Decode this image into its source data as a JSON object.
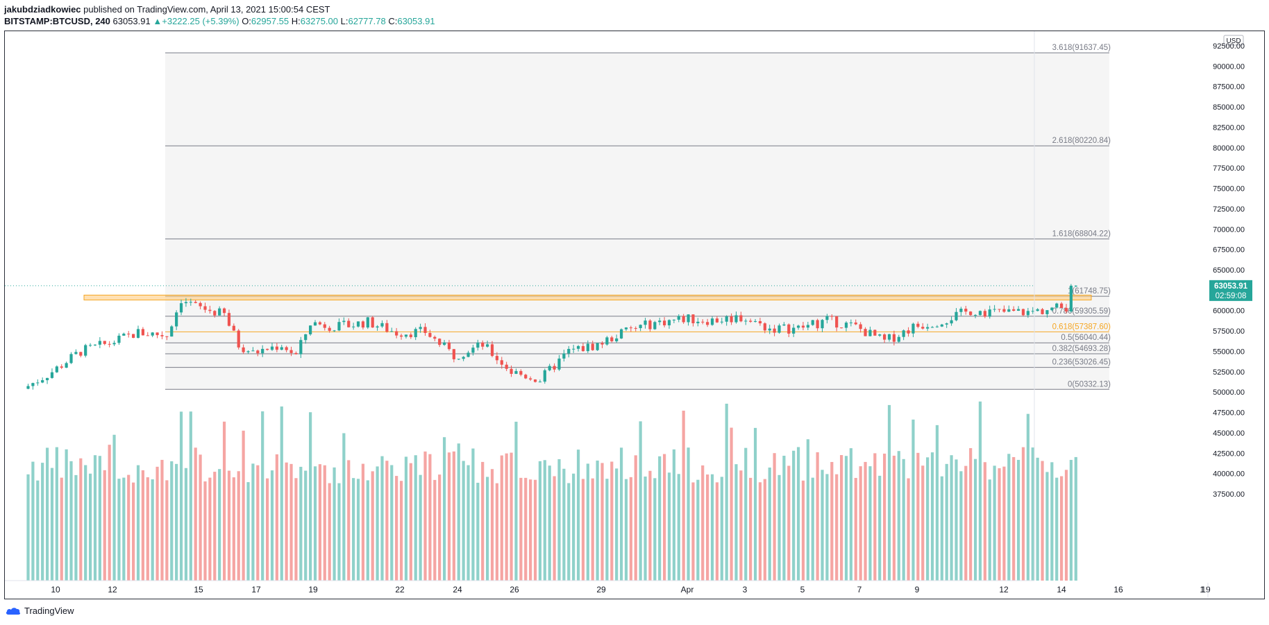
{
  "header": {
    "author": "jakubdziadkowiec",
    "published_text": "published on TradingView.com, April 13, 2021 15:00:54 CEST"
  },
  "legend": {
    "symbol": "BITSTAMP:BTCUSD, 240",
    "price": "63053.91",
    "change_arrow": "▲",
    "change": "+3222.25 (+5.39%)",
    "o_label": "O:",
    "o_value": "62957.55",
    "h_label": "H:",
    "h_value": "63275.00",
    "l_label": "L:",
    "l_value": "62777.78",
    "c_label": "C:",
    "c_value": "63053.91"
  },
  "price_axis": {
    "currency": "USD",
    "ticks": [
      "92500.00",
      "90000.00",
      "87500.00",
      "85000.00",
      "82500.00",
      "80000.00",
      "77500.00",
      "75000.00",
      "72500.00",
      "70000.00",
      "67500.00",
      "65000.00",
      "62500.00",
      "60000.00",
      "57500.00",
      "55000.00",
      "52500.00",
      "50000.00",
      "47500.00",
      "45000.00",
      "42500.00",
      "40000.00",
      "37500.00"
    ],
    "tick_values": [
      92500,
      90000,
      87500,
      85000,
      82500,
      80000,
      77500,
      75000,
      72500,
      70000,
      67500,
      65000,
      62500,
      60000,
      57500,
      55000,
      52500,
      50000,
      47500,
      45000,
      42500,
      40000,
      37500
    ],
    "last_price": "63053.91",
    "countdown": "02:59:08"
  },
  "time_axis": {
    "labels": [
      "10",
      "12",
      "15",
      "17",
      "19",
      "22",
      "24",
      "26",
      "29",
      "Apr",
      "3",
      "5",
      "7",
      "9",
      "12",
      "14",
      "16",
      "19"
    ]
  },
  "colors": {
    "up": "#26a69a",
    "down": "#ef5350",
    "up_volume": "#8fd1ca",
    "down_volume": "#f5a5a3",
    "fib_line": "#787b86",
    "fib_golden": "#f5a623",
    "zone_fill": "#ffcc80",
    "zone_border": "#f5a623"
  },
  "fibonacci": [
    {
      "label": "3.618(91637.45)",
      "price": 91637.45,
      "golden": false
    },
    {
      "label": "2.618(80220.84)",
      "price": 80220.84,
      "golden": false
    },
    {
      "label": "1.618(68804.22)",
      "price": 68804.22,
      "golden": false
    },
    {
      "label": "1(61748.75)",
      "price": 61748.75,
      "golden": false
    },
    {
      "label": "0.786(59305.59)",
      "price": 59305.59,
      "golden": false
    },
    {
      "label": "0.618(57387.60)",
      "price": 57387.6,
      "golden": true
    },
    {
      "label": "0.5(56040.44)",
      "price": 56040.44,
      "golden": false
    },
    {
      "label": "0.382(54693.28)",
      "price": 54693.28,
      "golden": false
    },
    {
      "label": "0.236(53026.45)",
      "price": 53026.45,
      "golden": false
    },
    {
      "label": "0(50332.13)",
      "price": 50332.13,
      "golden": false
    }
  ],
  "resistance_zone": {
    "price_low": 61300,
    "price_high": 61900
  },
  "chart_data": {
    "type": "candlestick",
    "symbol": "BITSTAMP:BTCUSD",
    "interval": "240",
    "ylim": [
      36500,
      94000
    ],
    "close_path": [
      {
        "date": "2021-03-08",
        "close": 50400
      },
      {
        "date": "2021-03-09",
        "close": 52500
      },
      {
        "date": "2021-03-10",
        "close": 55000
      },
      {
        "date": "2021-03-11",
        "close": 56000
      },
      {
        "date": "2021-03-12",
        "close": 57300
      },
      {
        "date": "2021-03-13",
        "close": 57000
      },
      {
        "date": "2021-03-13 12:00",
        "close": 61400
      },
      {
        "date": "2021-03-14",
        "close": 60500
      },
      {
        "date": "2021-03-15",
        "close": 59500
      },
      {
        "date": "2021-03-15 12:00",
        "close": 55800
      },
      {
        "date": "2021-03-16",
        "close": 54800
      },
      {
        "date": "2021-03-17",
        "close": 55800
      },
      {
        "date": "2021-03-17 12:00",
        "close": 54500
      },
      {
        "date": "2021-03-18",
        "close": 58500
      },
      {
        "date": "2021-03-19",
        "close": 58000
      },
      {
        "date": "2021-03-20",
        "close": 58600
      },
      {
        "date": "2021-03-21",
        "close": 57300
      },
      {
        "date": "2021-03-22",
        "close": 57400
      },
      {
        "date": "2021-03-23",
        "close": 54500
      },
      {
        "date": "2021-03-24",
        "close": 55800
      },
      {
        "date": "2021-03-25",
        "close": 52500
      },
      {
        "date": "2021-03-26",
        "close": 51500
      },
      {
        "date": "2021-03-27",
        "close": 55000
      },
      {
        "date": "2021-03-28",
        "close": 55800
      },
      {
        "date": "2021-03-29",
        "close": 57500
      },
      {
        "date": "2021-03-30",
        "close": 58500
      },
      {
        "date": "2021-03-31",
        "close": 59000
      },
      {
        "date": "2021-04-01",
        "close": 58800
      },
      {
        "date": "2021-04-02",
        "close": 59200
      },
      {
        "date": "2021-04-03",
        "close": 57800
      },
      {
        "date": "2021-04-04",
        "close": 57800
      },
      {
        "date": "2021-04-05",
        "close": 58800
      },
      {
        "date": "2021-04-06",
        "close": 58000
      },
      {
        "date": "2021-04-07",
        "close": 56200
      },
      {
        "date": "2021-04-08",
        "close": 58000
      },
      {
        "date": "2021-04-09",
        "close": 58800
      },
      {
        "date": "2021-04-10",
        "close": 60000
      },
      {
        "date": "2021-04-11",
        "close": 59800
      },
      {
        "date": "2021-04-12",
        "close": 59800
      },
      {
        "date": "2021-04-13 08:00",
        "close": 60500
      },
      {
        "date": "2021-04-13 12:00",
        "close": 63053.91
      }
    ],
    "volume_range": [
      37000,
      52000
    ]
  }
}
